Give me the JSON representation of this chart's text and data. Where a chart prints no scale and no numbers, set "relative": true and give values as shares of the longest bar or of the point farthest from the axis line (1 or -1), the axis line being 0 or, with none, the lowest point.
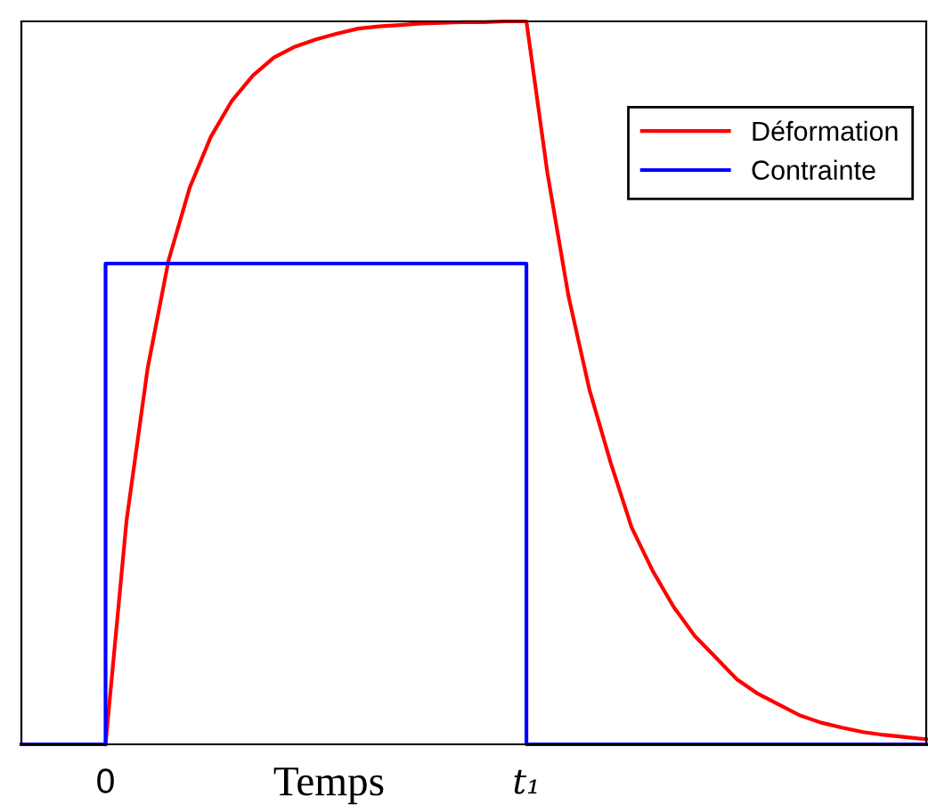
{
  "chart_data": {
    "type": "line",
    "relative": true,
    "xlabel": "Temps",
    "legend": "top right",
    "grid": false,
    "marker": "none",
    "line_style": "solid",
    "categories": [
      null,
      null,
      null,
      null,
      "0",
      null,
      null,
      null,
      null,
      null,
      null,
      null,
      null,
      null,
      null,
      null,
      null,
      null,
      null,
      null,
      null,
      null,
      null,
      null,
      "t₁",
      null,
      null,
      null,
      null,
      null,
      null,
      null,
      null,
      null,
      null,
      null,
      null,
      null,
      null,
      null,
      null,
      null,
      null,
      null
    ],
    "series": [
      {
        "name": "Déformation",
        "color": "#ff0000",
        "values": [
          null,
          null,
          null,
          null,
          0,
          0.31,
          0.52,
          0.67,
          0.77,
          0.84,
          0.89,
          0.925,
          0.95,
          0.965,
          0.975,
          0.983,
          0.99,
          0.993,
          0.995,
          0.997,
          0.998,
          0.999,
          0.999,
          1.0,
          1.0,
          0.79,
          0.62,
          0.49,
          0.39,
          0.3,
          0.24,
          0.19,
          0.15,
          0.12,
          0.09,
          0.07,
          0.055,
          0.04,
          0.03,
          0.023,
          0.017,
          0.013,
          0.01,
          0.007
        ]
      },
      {
        "name": "Contrainte",
        "color": "#0000ff",
        "type": "step",
        "values": [
          0,
          0,
          0,
          0,
          0.665,
          0.665,
          0.665,
          0.665,
          0.665,
          0.665,
          0.665,
          0.665,
          0.665,
          0.665,
          0.665,
          0.665,
          0.665,
          0.665,
          0.665,
          0.665,
          0.665,
          0.665,
          0.665,
          0.665,
          0,
          0,
          0,
          0,
          0,
          0,
          0,
          0,
          0,
          0,
          0,
          0,
          0,
          0,
          0,
          0,
          0,
          0,
          0,
          0
        ]
      }
    ]
  }
}
